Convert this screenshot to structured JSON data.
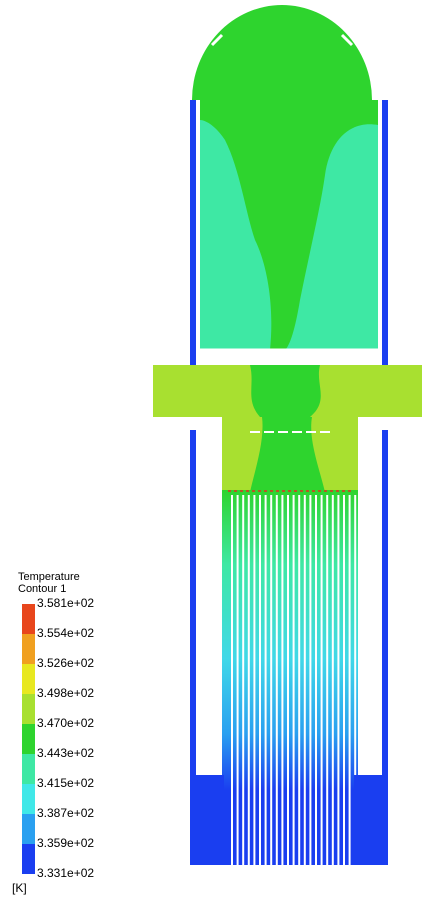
{
  "legend": {
    "title": "Temperature",
    "subtitle": "Contour 1",
    "labels": [
      "3.581e+02",
      "3.554e+02",
      "3.526e+02",
      "3.498e+02",
      "3.470e+02",
      "3.443e+02",
      "3.415e+02",
      "3.387e+02",
      "3.359e+02",
      "3.331e+02"
    ],
    "unit": "[K]"
  }
}
